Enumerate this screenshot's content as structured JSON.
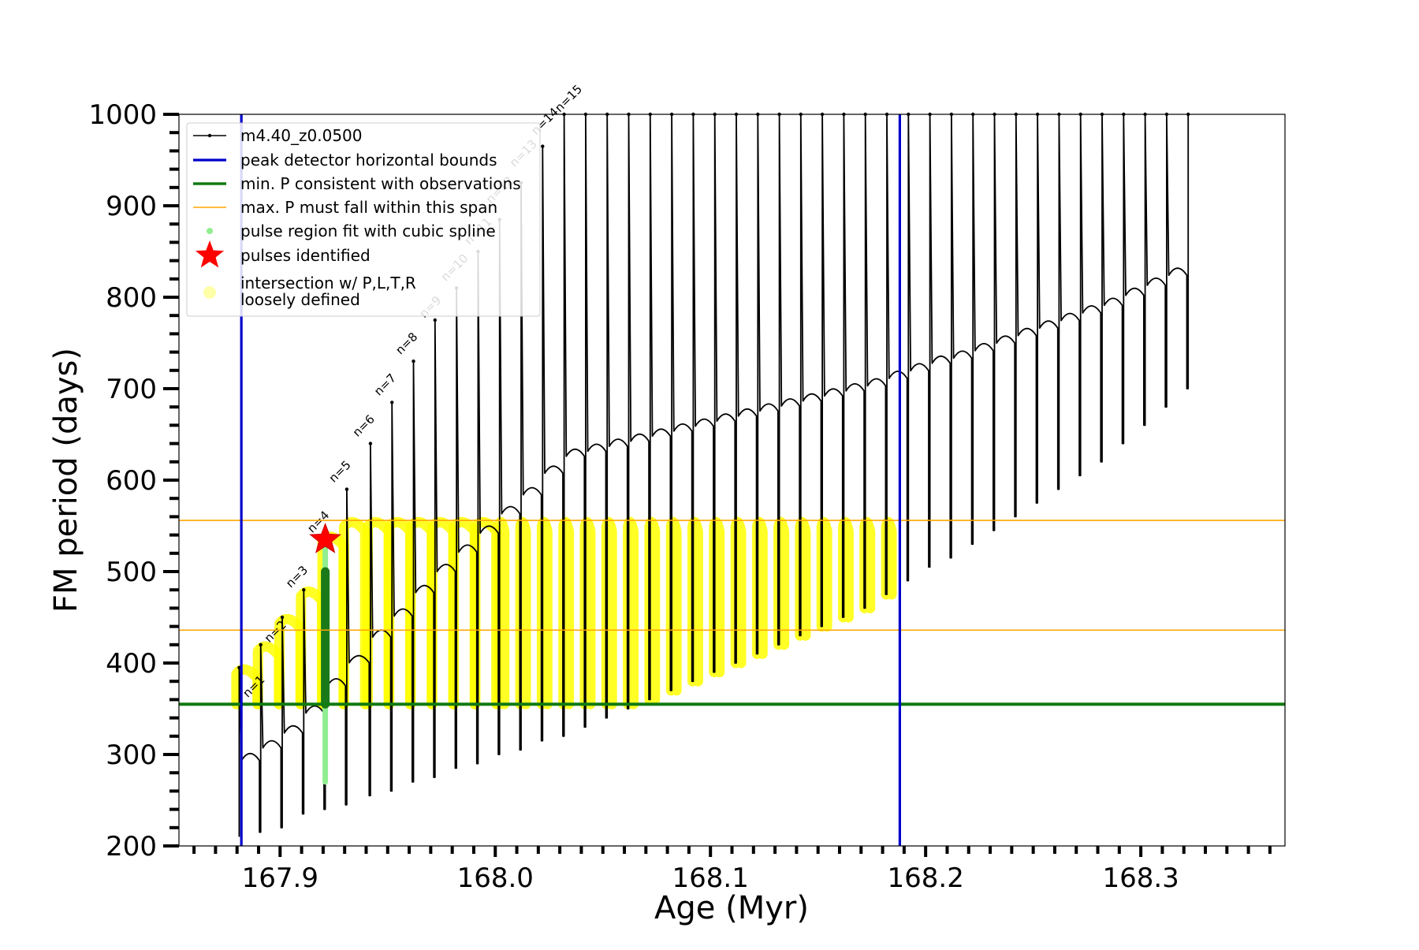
{
  "chart_data": {
    "type": "line",
    "title": "",
    "xlabel": "Age (Myr)",
    "ylabel": "FM period (days)",
    "xlim": [
      167.853,
      168.367
    ],
    "ylim": [
      200,
      1000
    ],
    "xticks": [
      167.9,
      168.0,
      168.1,
      168.2,
      168.3
    ],
    "xtick_labels": [
      "167.9",
      "168.0",
      "168.1",
      "168.2",
      "168.3"
    ],
    "yticks": [
      200,
      300,
      400,
      500,
      600,
      700,
      800,
      900,
      1000
    ],
    "ytick_labels": [
      "200",
      "300",
      "400",
      "500",
      "600",
      "700",
      "800",
      "900",
      "1000"
    ],
    "grid": false,
    "legend_position": "top-left",
    "legend": [
      "m4.40_z0.0500",
      "peak detector horizontal bounds",
      "min. P consistent with observations",
      "max. P must fall within this span",
      "pulse region fit with cubic spline",
      "pulses identified",
      "intersection w/ P,L,T,R\nloosely defined"
    ],
    "colors": {
      "model": "#000000",
      "bounds": "#0000cc",
      "min_p": "#117a11",
      "max_p": "#ffa500",
      "spline": "#90ee90",
      "pulse": "#ff0000",
      "intersection": "#ffff00",
      "intersection_legend": "#ffffaa",
      "pulse_fill": "#1a7a1a"
    },
    "vertical_bounds": [
      167.882,
      168.188
    ],
    "min_period": 355,
    "max_period_span": [
      436,
      556
    ],
    "pulse_identified": {
      "x": 167.921,
      "y": 535
    },
    "model_series": {
      "name": "m4.40_z0.0500",
      "pulse_ages": [
        167.881,
        167.891,
        167.901,
        167.911,
        167.921,
        167.931,
        167.942,
        167.952,
        167.962,
        167.972,
        167.982,
        167.992,
        168.002,
        168.012,
        168.022,
        168.032,
        168.042,
        168.052,
        168.062,
        168.072,
        168.082,
        168.092,
        168.102,
        168.112,
        168.122,
        168.132,
        168.142,
        168.152,
        168.162,
        168.172,
        168.182,
        168.192,
        168.202,
        168.212,
        168.222,
        168.232,
        168.242,
        168.252,
        168.262,
        168.272,
        168.282,
        168.292,
        168.302,
        168.312,
        168.322
      ],
      "pulse_peaks": [
        395,
        420,
        450,
        480,
        540,
        590,
        640,
        685,
        730,
        775,
        810,
        850,
        885,
        925,
        965,
        1000,
        1000,
        1000,
        1000,
        1000,
        1000,
        1000,
        1000,
        1000,
        1000,
        1000,
        1000,
        1000,
        1000,
        1000,
        1000,
        1000,
        1000,
        1000,
        1000,
        1000,
        1000,
        1000,
        1000,
        1000,
        1000,
        1000,
        1000,
        1000,
        1000
      ],
      "pulse_minima": [
        210,
        215,
        220,
        235,
        240,
        245,
        255,
        260,
        270,
        275,
        285,
        290,
        300,
        305,
        315,
        320,
        330,
        340,
        350,
        360,
        370,
        380,
        390,
        400,
        410,
        420,
        430,
        440,
        450,
        460,
        475,
        490,
        505,
        515,
        530,
        545,
        560,
        575,
        590,
        605,
        620,
        640,
        660,
        680,
        700
      ],
      "pulse_labels": [
        "n=1",
        "n=2",
        "n=3",
        "n=4",
        "n=5",
        "n=6",
        "n=7",
        "n=8",
        "n=9",
        "n=10",
        "n=11",
        "n=12",
        "n=13",
        "n=14",
        "n=15"
      ],
      "label_ages": [
        167.885,
        167.895,
        167.905,
        167.915,
        167.925,
        167.936,
        167.946,
        167.956,
        167.967,
        167.977,
        167.988,
        167.998,
        168.009,
        168.019,
        168.03
      ],
      "label_periods": [
        360,
        420,
        480,
        540,
        595,
        645,
        690,
        735,
        775,
        815,
        855,
        900,
        940,
        975,
        1000
      ]
    }
  }
}
